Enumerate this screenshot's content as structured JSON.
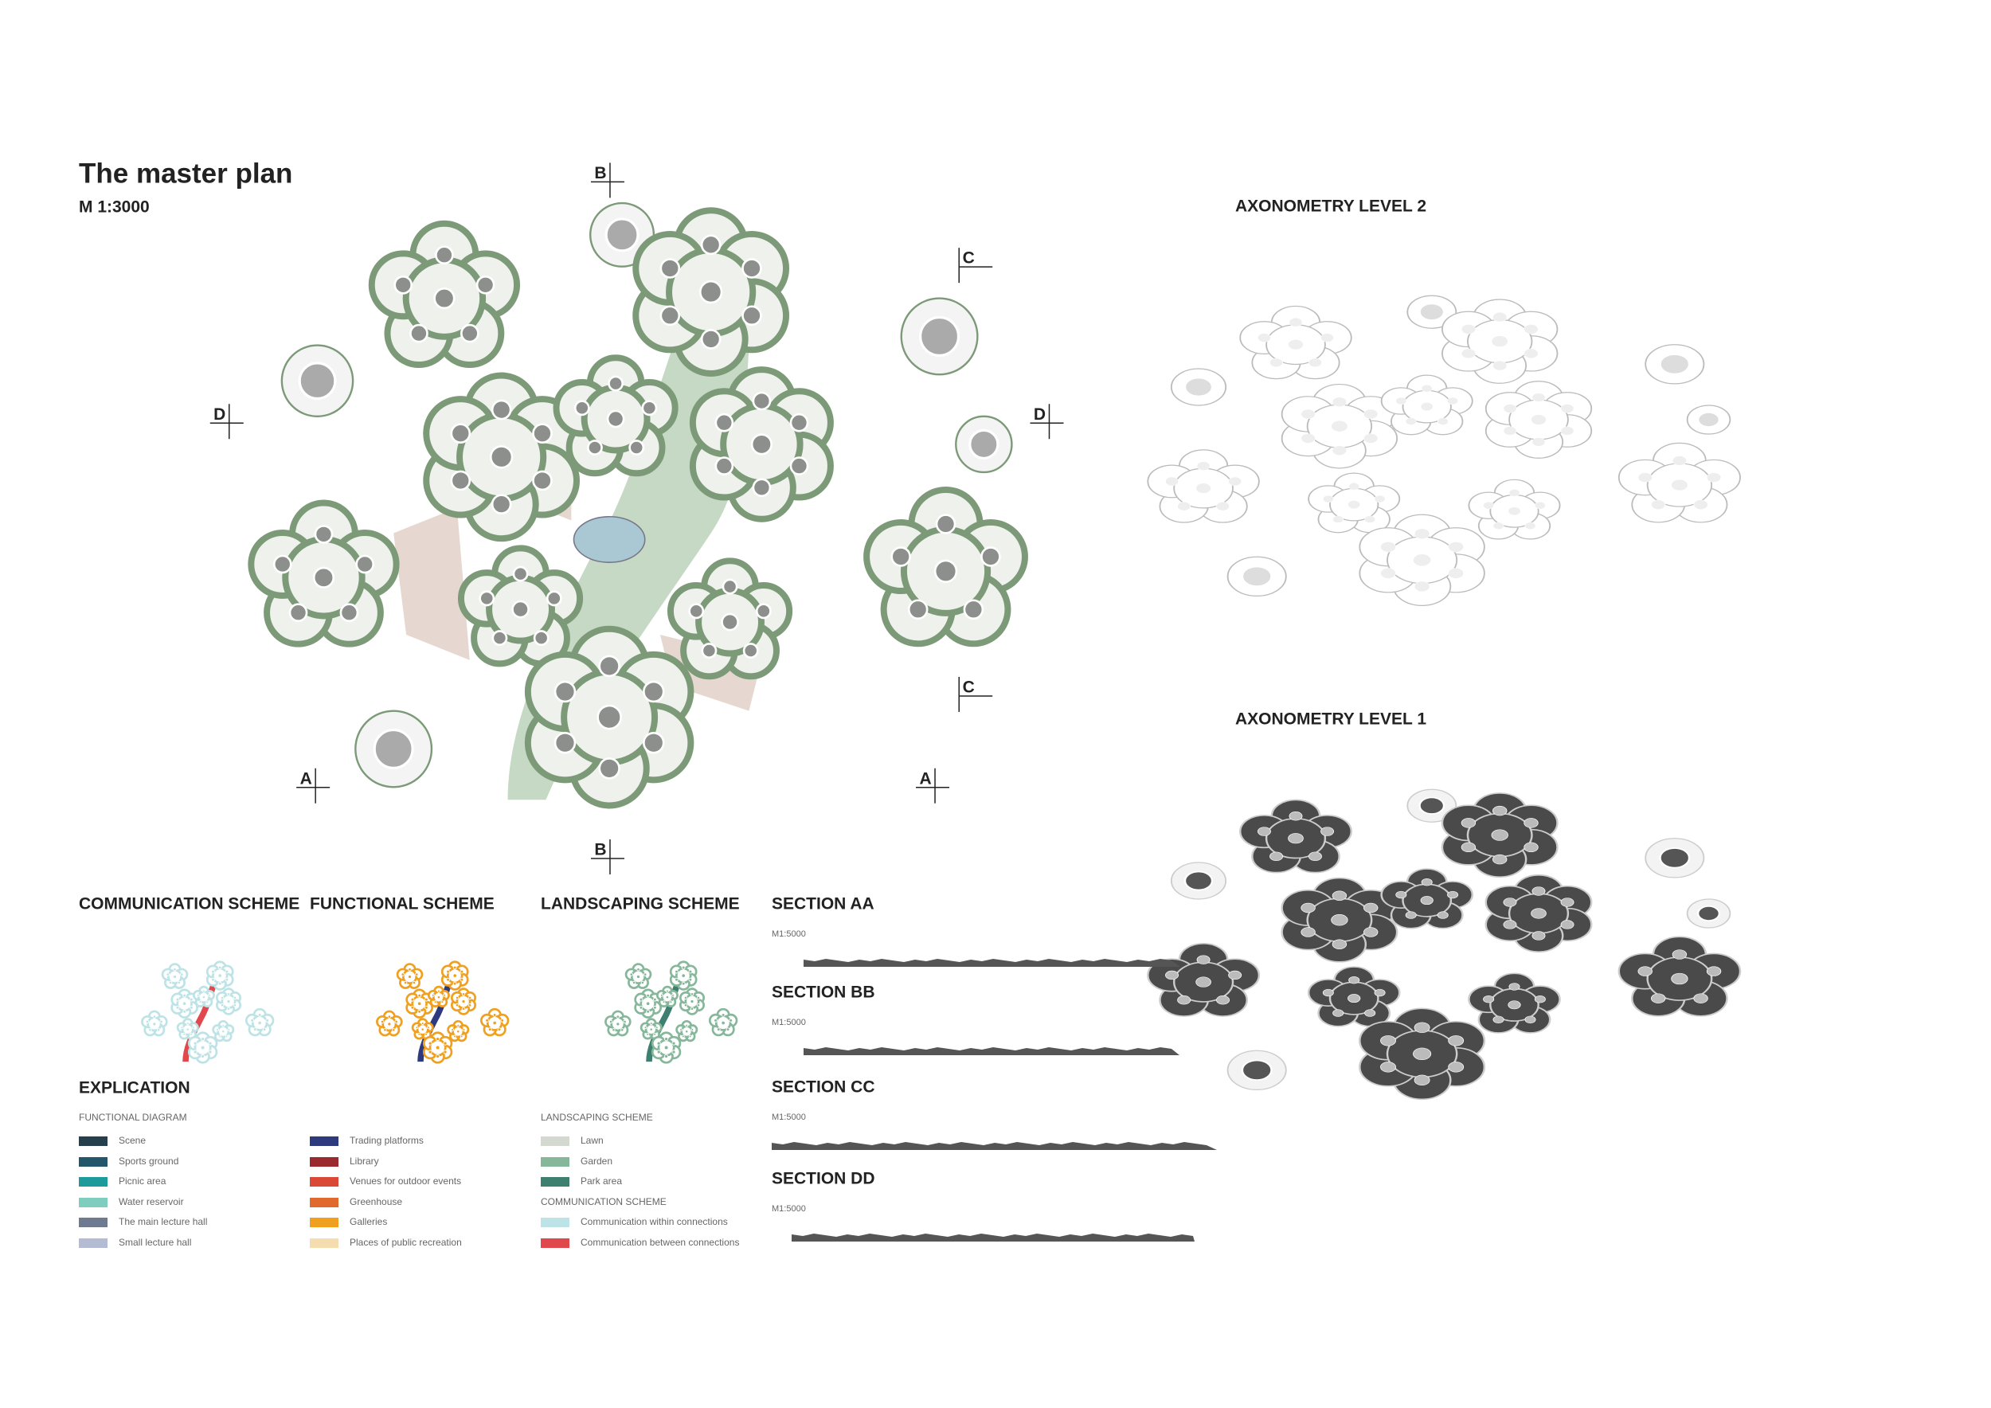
{
  "header": {
    "title": "The master plan",
    "scale": "M 1:3000"
  },
  "section_markers": [
    "B",
    "C",
    "D",
    "D",
    "C",
    "A",
    "A",
    "B"
  ],
  "axonometry": {
    "level_2": "AXONOMETRY LEVEL 2",
    "level_1": "AXONOMETRY LEVEL 1"
  },
  "schemes": [
    "COMMUNICATION SCHEME",
    "FUNCTIONAL SCHEME",
    "LANDSCAPING SCHEME"
  ],
  "sections": [
    {
      "title": "SECTION AA",
      "scale": "M1:5000"
    },
    {
      "title": "SECTION BB",
      "scale": "M1:5000"
    },
    {
      "title": "SECTION CC",
      "scale": "M1:5000"
    },
    {
      "title": "SECTION DD",
      "scale": "M1:5000"
    }
  ],
  "explication": {
    "title": "EXPLICATION",
    "functional_diagram": {
      "title": "FUNCTIONAL DIAGRAM",
      "items": [
        {
          "label": "Scene",
          "color": "#263f4c"
        },
        {
          "label": "Sports ground",
          "color": "#24566b"
        },
        {
          "label": "Picnic area",
          "color": "#1e9a9a"
        },
        {
          "label": "Water reservoir",
          "color": "#7fcdbf"
        },
        {
          "label": "The main lecture hall",
          "color": "#6e7a8f"
        },
        {
          "label": "Small lecture hall",
          "color": "#b4bcd3"
        },
        {
          "label": "Trading platforms",
          "color": "#2e3a7e"
        },
        {
          "label": "Library",
          "color": "#9b2a2e"
        },
        {
          "label": "Venues for outdoor events",
          "color": "#d84a35"
        },
        {
          "label": "Greenhouse",
          "color": "#e06a2e"
        },
        {
          "label": "Galleries",
          "color": "#f0a01f"
        },
        {
          "label": "Places of public recreation",
          "color": "#f5ddb0"
        }
      ]
    },
    "landscaping": {
      "title": "LANDSCAPING SCHEME",
      "items": [
        {
          "label": "Lawn",
          "color": "#d3d8d0"
        },
        {
          "label": "Garden",
          "color": "#86b79a"
        },
        {
          "label": "Park area",
          "color": "#3e7f6f"
        }
      ]
    },
    "communication": {
      "title": "COMMUNICATION SCHEME",
      "items": [
        {
          "label": "Communication within connections",
          "color": "#bde3e6"
        },
        {
          "label": "Communication between connections",
          "color": "#e0484d"
        }
      ]
    }
  }
}
